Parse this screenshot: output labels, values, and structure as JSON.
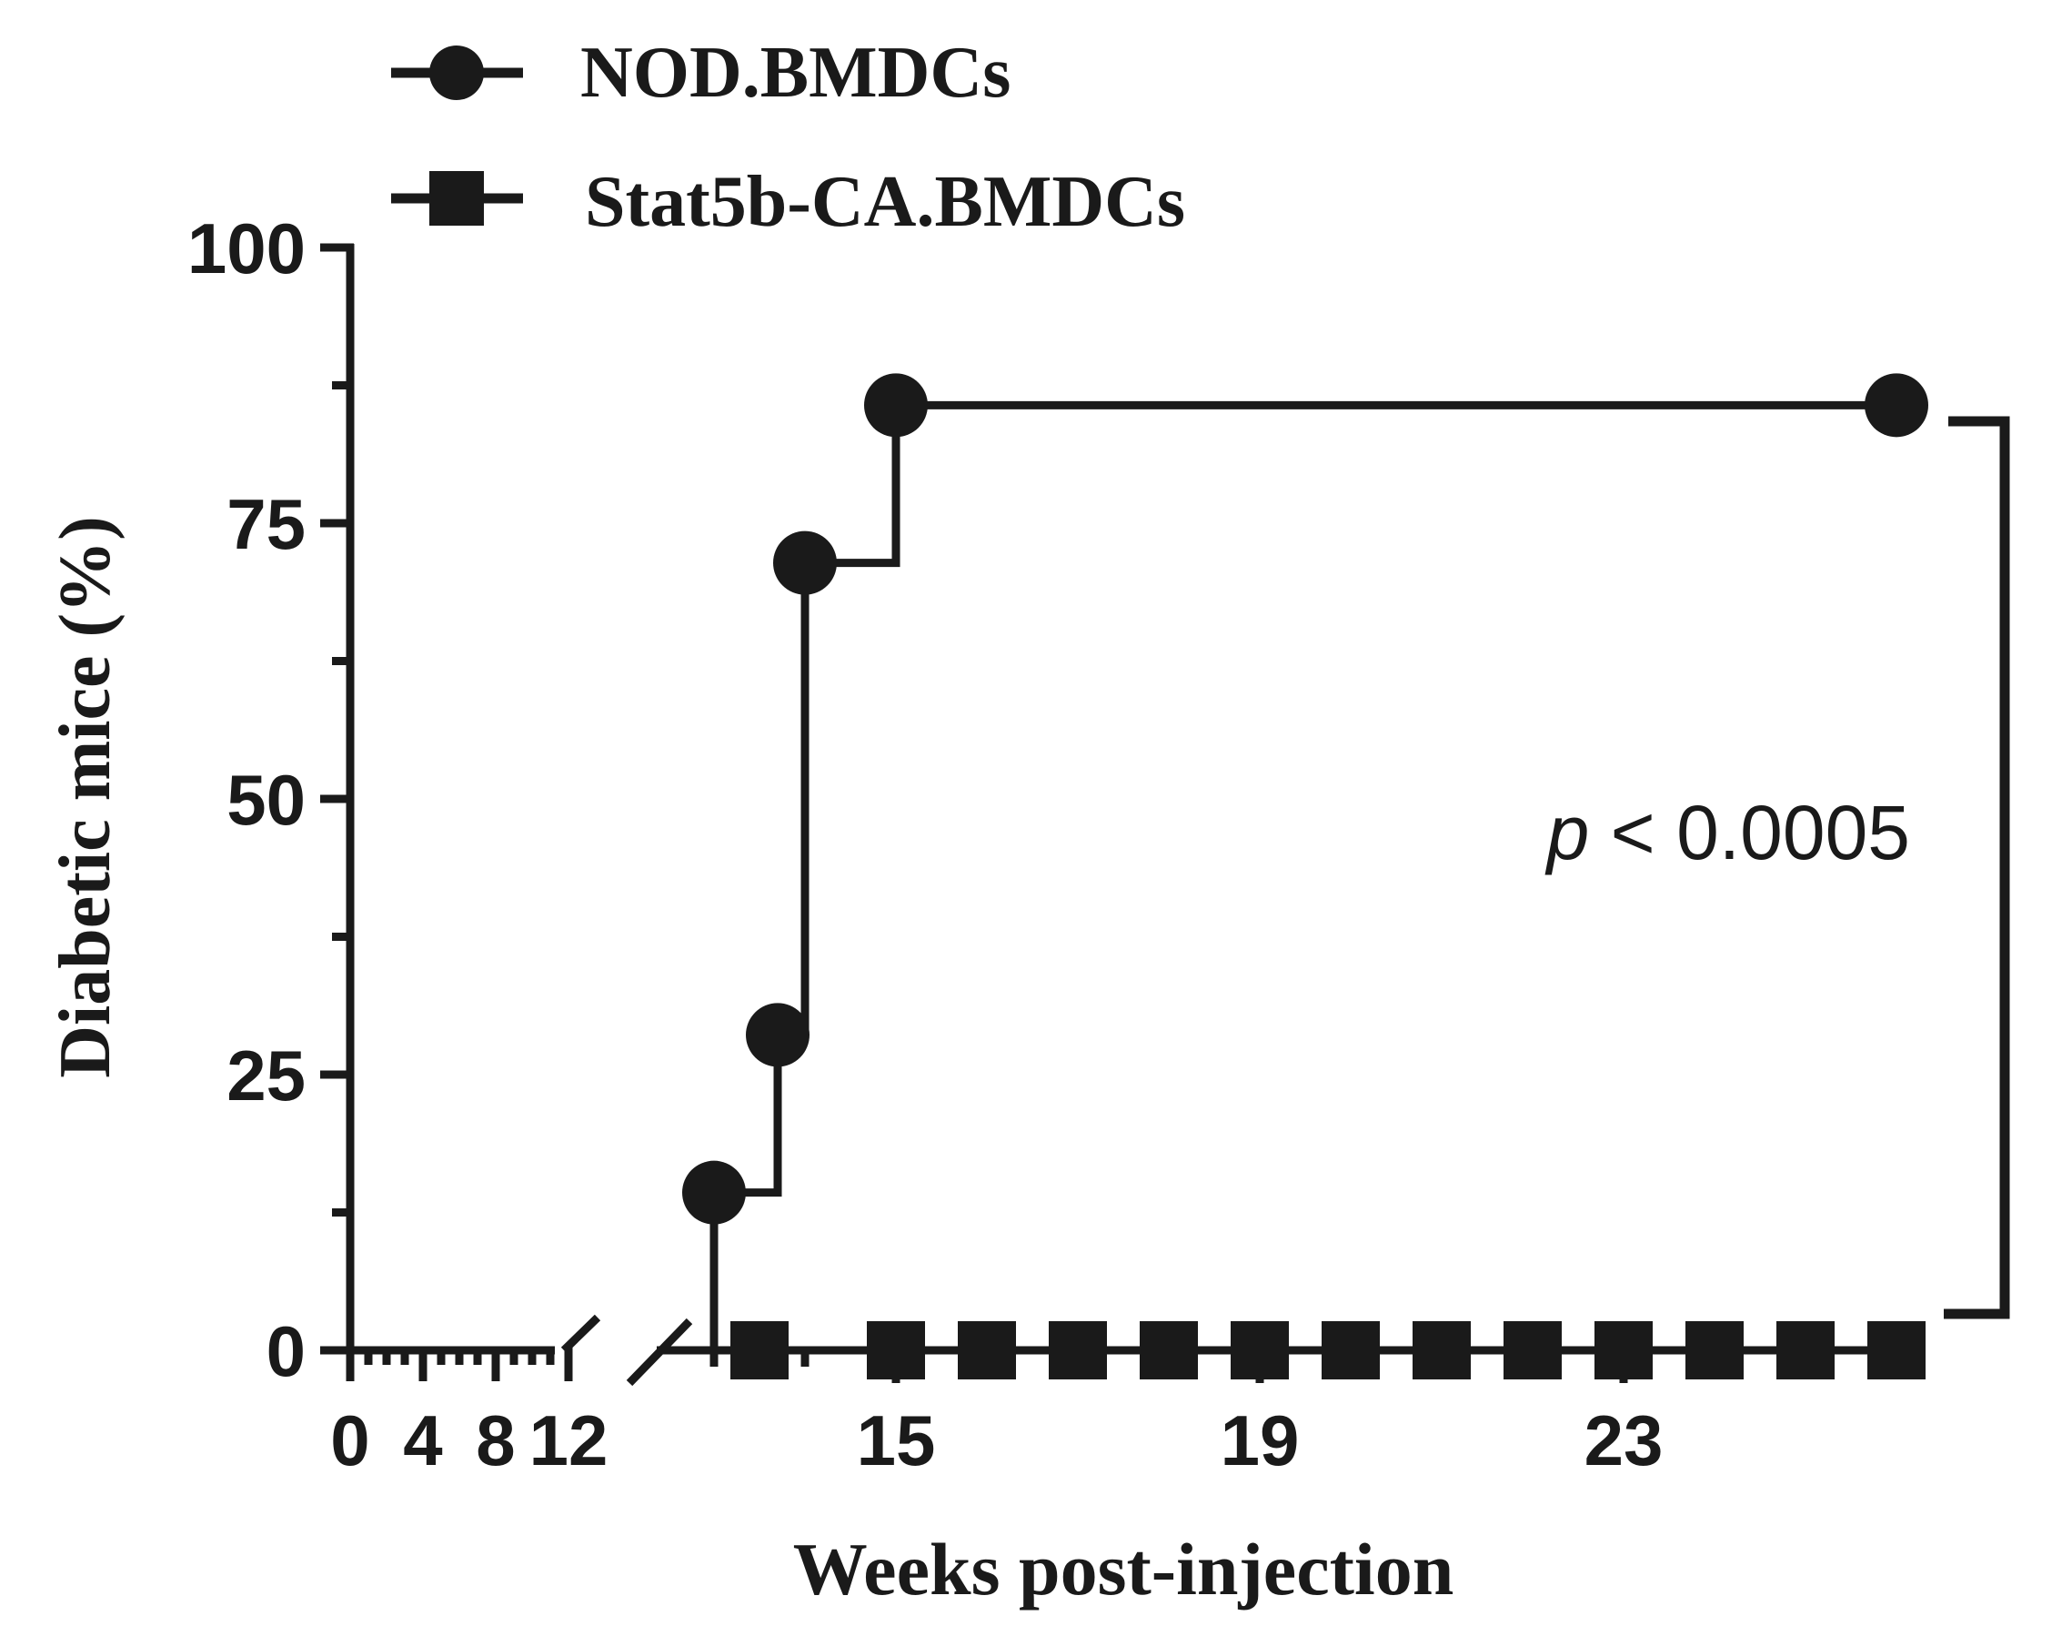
{
  "colors": {
    "ink": "#1a1a1a",
    "background": "#ffffff"
  },
  "chart_data": {
    "type": "line",
    "step": true,
    "ylabel": "Diabetic mice (%)",
    "xlabel": "Weeks post-injection",
    "ylim": [
      0,
      100
    ],
    "y_ticks": [
      0,
      25,
      50,
      75,
      100
    ],
    "y_tick_labels": [
      "0",
      "25",
      "50",
      "75",
      "100"
    ],
    "x_axis_break": "between 12 and 13",
    "x_ticks_left": [
      0,
      1,
      2,
      3,
      4,
      5,
      6,
      7,
      8,
      9,
      10,
      11,
      12
    ],
    "x_tick_labels_left": [
      "0",
      "4",
      "8",
      "12"
    ],
    "x_tick_label_values_left": [
      0,
      4,
      8,
      12
    ],
    "x_ticks_right": [
      13,
      14,
      15,
      16,
      17,
      18,
      19,
      20,
      21,
      22,
      23,
      24,
      25
    ],
    "x_tick_labels_right": [
      "15",
      "19",
      "23"
    ],
    "x_tick_label_values_right": [
      15,
      19,
      23
    ],
    "legend": {
      "placement": "top-left",
      "entries": [
        "NOD.BMDCs",
        "Stat5b-CA.BMDCs"
      ]
    },
    "series": [
      {
        "name": "NOD.BMDCs",
        "marker": "circle",
        "x": [
          0,
          13.0,
          13.7,
          14.0,
          15.0,
          26.0
        ],
        "y": [
          0,
          14.3,
          28.6,
          71.4,
          85.7,
          85.7
        ],
        "marked_points": [
          1,
          2,
          3,
          4,
          5
        ]
      },
      {
        "name": "Stat5b-CA.BMDCs",
        "marker": "square",
        "x": [
          0,
          13.5,
          15,
          16,
          17,
          18,
          19,
          20,
          21,
          22,
          23,
          24,
          25,
          26
        ],
        "y": [
          0,
          0,
          0,
          0,
          0,
          0,
          0,
          0,
          0,
          0,
          0,
          0,
          0,
          0
        ],
        "marked_points": [
          1,
          2,
          3,
          4,
          5,
          6,
          7,
          8,
          9,
          10,
          11,
          12,
          13
        ]
      }
    ],
    "annotations": [
      {
        "text_italic": "p",
        "text": " < 0.0005",
        "type": "significance-bracket"
      }
    ]
  }
}
